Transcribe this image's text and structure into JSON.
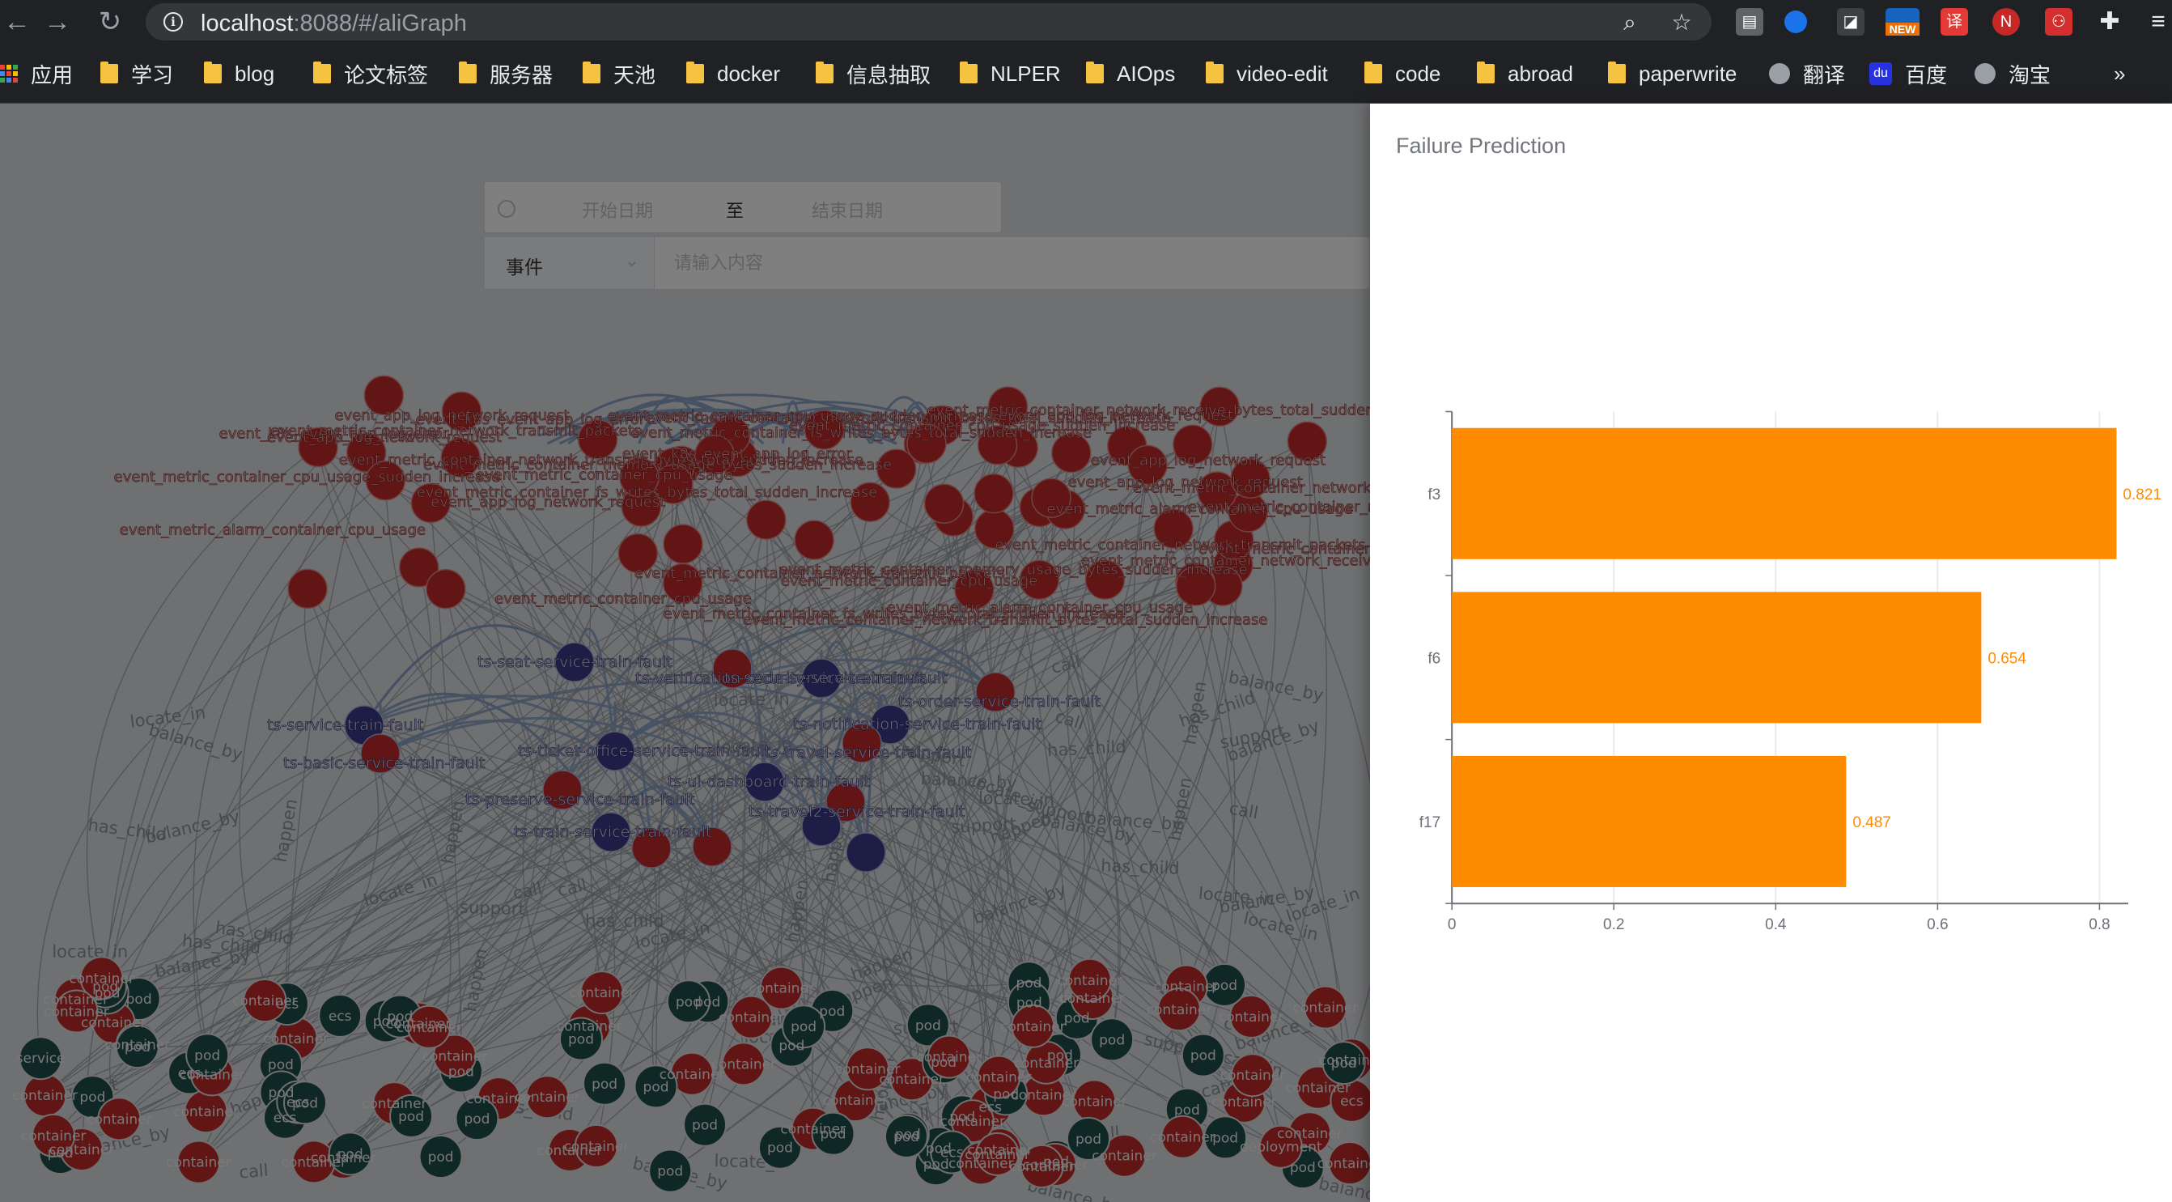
{
  "browser": {
    "url_host": "localhost",
    "url_path": ":8088/#/aliGraph",
    "ext_new_badge": "NEW",
    "ext_translate_glyph": "译",
    "bookmarks": [
      {
        "label": "应用",
        "icon": "apps-grid-icon"
      },
      {
        "label": "学习",
        "icon": "folder-icon"
      },
      {
        "label": "blog",
        "icon": "folder-icon"
      },
      {
        "label": "论文标签",
        "icon": "folder-icon"
      },
      {
        "label": "服务器",
        "icon": "folder-icon"
      },
      {
        "label": "天池",
        "icon": "folder-icon"
      },
      {
        "label": "docker",
        "icon": "folder-icon"
      },
      {
        "label": "信息抽取",
        "icon": "folder-icon"
      },
      {
        "label": "NLPER",
        "icon": "folder-icon"
      },
      {
        "label": "AIOps",
        "icon": "folder-icon"
      },
      {
        "label": "video-edit",
        "icon": "folder-icon"
      },
      {
        "label": "code",
        "icon": "folder-icon"
      },
      {
        "label": "abroad",
        "icon": "folder-icon"
      },
      {
        "label": "paperwrite",
        "icon": "folder-icon"
      },
      {
        "label": "翻译",
        "icon": "globe-icon"
      },
      {
        "label": "百度",
        "icon": "baidu-icon"
      },
      {
        "label": "淘宝",
        "icon": "globe-icon"
      }
    ],
    "overflow": "»"
  },
  "filters": {
    "start_placeholder": "开始日期",
    "range_separator": "至",
    "end_placeholder": "结束日期",
    "type_select_value": "事件",
    "search_placeholder": "请输入内容"
  },
  "graph": {
    "node_colors": {
      "event": "#c22a2b",
      "service": "#3d3a8a",
      "pod": "#1f4e4a"
    },
    "event_labels": [
      "event_metric_container_cpu_usage",
      "event_metric_container_memory_usage_bytes_sudden_increase",
      "event_app_log_network_request",
      "event_metric_container_network_transmit_bytes_total_sudden_increase",
      "event_metric_container_fs_writes_bytes_total_sudden_increase",
      "event_metric_alarm_container_cpu_usage",
      "event_k8s_event_app_log_error",
      "event_app_log_network_request",
      "event_metric_container_network_receive_bytes_total_sudden_increase",
      "event_metric_container_cpu_usage_sudden_increase",
      "event_metric_container_network_transmit_packets"
    ],
    "service_labels": [
      "ts-seat-service-train-fault",
      "ts-verification-code-service-train-fault",
      "ts-security-service-train-fault",
      "ts-order-service-train-fault",
      "ts-service-train-fault",
      "ts-basic-service-train-fault",
      "ts-notification-service-train-fault",
      "ts-travel-service-train-fault",
      "ts-ticket-office-service-train-fault",
      "ts-travel2-service-train-fault",
      "ts-ui-dashboard-train-fault",
      "ts-preserve-service-train-fault",
      "ts-train-service-train-fault"
    ],
    "node_labels": {
      "pod": "pod",
      "container": "container",
      "ecs": "ecs",
      "service": "service",
      "deployment": "deployment"
    },
    "edge_labels": [
      "happen",
      "support",
      "call",
      "has_child",
      "balance_by",
      "locate_in"
    ]
  },
  "drawer": {
    "title": "Failure Prediction"
  },
  "chart_data": {
    "type": "bar",
    "orientation": "horizontal",
    "title": "",
    "categories": [
      "f3",
      "f6",
      "f17"
    ],
    "values": [
      0.821,
      0.654,
      0.487
    ],
    "value_labels": [
      "0.821",
      "0.654",
      "0.487"
    ],
    "xlim": [
      0,
      0.82
    ],
    "x_ticks": [
      0,
      0.2,
      0.4,
      0.6,
      0.8
    ],
    "x_tick_labels": [
      "0",
      "0.2",
      "0.4",
      "0.6",
      "0.8"
    ],
    "grid": true,
    "bar_color": "#ff8c00",
    "label_color": "#ff8c00"
  }
}
